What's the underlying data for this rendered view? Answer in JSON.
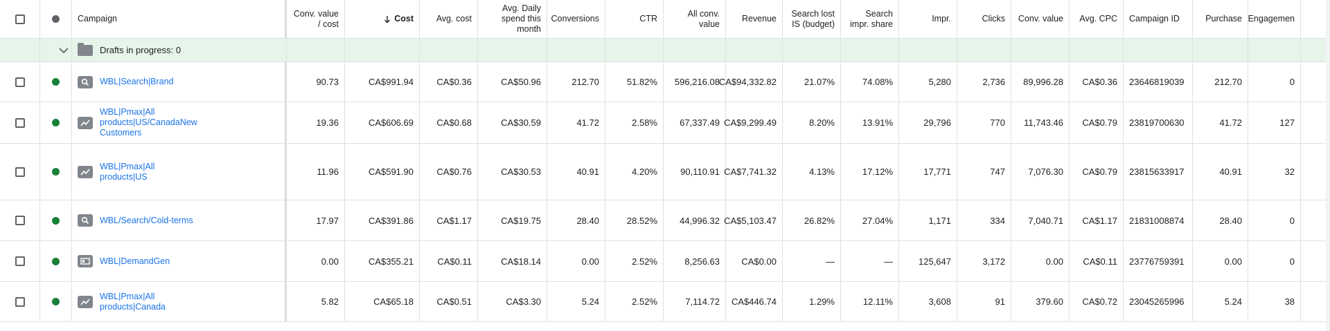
{
  "columns": [
    {
      "key": "check",
      "label": "",
      "w": 58
    },
    {
      "key": "status",
      "label": "",
      "w": 46
    },
    {
      "key": "campaign",
      "label": "Campaign",
      "w": 310
    },
    {
      "key": "conv_value_cost",
      "label": "Conv. value / cost",
      "w": 84,
      "num": true
    },
    {
      "key": "cost",
      "label": "Cost",
      "w": 108,
      "num": true,
      "sorted": true
    },
    {
      "key": "avg_cost",
      "label": "Avg. cost",
      "w": 84,
      "num": true
    },
    {
      "key": "avg_daily",
      "label": "Avg. Daily spend this month",
      "w": 100,
      "num": true
    },
    {
      "key": "conversions",
      "label": "Conversions",
      "w": 84,
      "num": true
    },
    {
      "key": "ctr",
      "label": "CTR",
      "w": 84,
      "num": true
    },
    {
      "key": "all_conv_value",
      "label": "All conv. value",
      "w": 90,
      "num": true
    },
    {
      "key": "revenue",
      "label": "Revenue",
      "w": 82,
      "num": true
    },
    {
      "key": "search_lost_is",
      "label": "Search lost IS (budget)",
      "w": 84,
      "num": true
    },
    {
      "key": "search_impr_share",
      "label": "Search impr. share",
      "w": 84,
      "num": true
    },
    {
      "key": "impr",
      "label": "Impr.",
      "w": 84,
      "num": true
    },
    {
      "key": "clicks",
      "label": "Clicks",
      "w": 78,
      "num": true
    },
    {
      "key": "conv_value",
      "label": "Conv. value",
      "w": 84,
      "num": true
    },
    {
      "key": "avg_cpc",
      "label": "Avg. CPC",
      "w": 78,
      "num": true
    },
    {
      "key": "campaign_id",
      "label": "Campaign ID",
      "w": 100
    },
    {
      "key": "purchase",
      "label": "Purchase",
      "w": 80,
      "num": true
    },
    {
      "key": "engagement",
      "label": "Engagemen",
      "w": 76,
      "num": true
    }
  ],
  "sort_icon": "arrow-down-icon",
  "draft_row": {
    "label": "Drafts in progress: 0",
    "icon": "folder-icon",
    "toggle_icon": "chevron-down-icon"
  },
  "status_color": "#188038",
  "rows": [
    {
      "h": 58,
      "type_icon": "search-icon",
      "campaign": "WBL|Search|Brand",
      "conv_value_cost": "90.73",
      "cost": "CA$991.94",
      "avg_cost": "CA$0.36",
      "avg_daily": "CA$50.96",
      "conversions": "212.70",
      "ctr": "51.82%",
      "all_conv_value": "596,216.08",
      "revenue": "CA$94,332.82",
      "search_lost_is": "21.07%",
      "search_impr_share": "74.08%",
      "impr": "5,280",
      "clicks": "2,736",
      "conv_value": "89,996.28",
      "avg_cpc": "CA$0.36",
      "campaign_id": "23646819039",
      "purchase": "212.70",
      "engagement": "0"
    },
    {
      "h": 60,
      "type_icon": "trend-icon",
      "campaign": "WBL|Pmax|All products|US/CanadaNew Customers",
      "conv_value_cost": "19.36",
      "cost": "CA$606.69",
      "avg_cost": "CA$0.68",
      "avg_daily": "CA$30.59",
      "conversions": "41.72",
      "ctr": "2.58%",
      "all_conv_value": "67,337.49",
      "revenue": "CA$9,299.49",
      "search_lost_is": "8.20%",
      "search_impr_share": "13.91%",
      "impr": "29,796",
      "clicks": "770",
      "conv_value": "11,743.46",
      "avg_cpc": "CA$0.79",
      "campaign_id": "23819700630",
      "purchase": "41.72",
      "engagement": "127"
    },
    {
      "h": 82,
      "type_icon": "trend-icon",
      "campaign": "WBL|Pmax|All products|US",
      "conv_value_cost": "11.96",
      "cost": "CA$591.90",
      "avg_cost": "CA$0.76",
      "avg_daily": "CA$30.53",
      "conversions": "40.91",
      "ctr": "4.20%",
      "all_conv_value": "90,110.91",
      "revenue": "CA$7,741.32",
      "search_lost_is": "4.13%",
      "search_impr_share": "17.12%",
      "impr": "17,771",
      "clicks": "747",
      "conv_value": "7,076.30",
      "avg_cpc": "CA$0.79",
      "campaign_id": "23815633917",
      "purchase": "40.91",
      "engagement": "32"
    },
    {
      "h": 59,
      "type_icon": "search-icon",
      "campaign": "WBL/Search/Cold-terms",
      "conv_value_cost": "17.97",
      "cost": "CA$391.86",
      "avg_cost": "CA$1.17",
      "avg_daily": "CA$19.75",
      "conversions": "28.40",
      "ctr": "28.52%",
      "all_conv_value": "44,996.32",
      "revenue": "CA$5,103.47",
      "search_lost_is": "26.82%",
      "search_impr_share": "27.04%",
      "impr": "1,171",
      "clicks": "334",
      "conv_value": "7,040.71",
      "avg_cpc": "CA$1.17",
      "campaign_id": "21831008874",
      "purchase": "28.40",
      "engagement": "0"
    },
    {
      "h": 59,
      "type_icon": "display-icon",
      "campaign": "WBL|DemandGen",
      "conv_value_cost": "0.00",
      "cost": "CA$355.21",
      "avg_cost": "CA$0.11",
      "avg_daily": "CA$18.14",
      "conversions": "0.00",
      "ctr": "2.52%",
      "all_conv_value": "8,256.63",
      "revenue": "CA$0.00",
      "search_lost_is": "—",
      "search_impr_share": "—",
      "impr": "125,647",
      "clicks": "3,172",
      "conv_value": "0.00",
      "avg_cpc": "CA$0.11",
      "campaign_id": "23776759391",
      "purchase": "0.00",
      "engagement": "0"
    },
    {
      "h": 58,
      "type_icon": "trend-icon",
      "campaign": "WBL|Pmax|All products|Canada",
      "conv_value_cost": "5.82",
      "cost": "CA$65.18",
      "avg_cost": "CA$0.51",
      "avg_daily": "CA$3.30",
      "conversions": "5.24",
      "ctr": "2.52%",
      "all_conv_value": "7,114.72",
      "revenue": "CA$446.74",
      "search_lost_is": "1.29%",
      "search_impr_share": "12.11%",
      "impr": "3,608",
      "clicks": "91",
      "conv_value": "379.60",
      "avg_cpc": "CA$0.72",
      "campaign_id": "23045265996",
      "purchase": "5.24",
      "engagement": "38"
    }
  ]
}
